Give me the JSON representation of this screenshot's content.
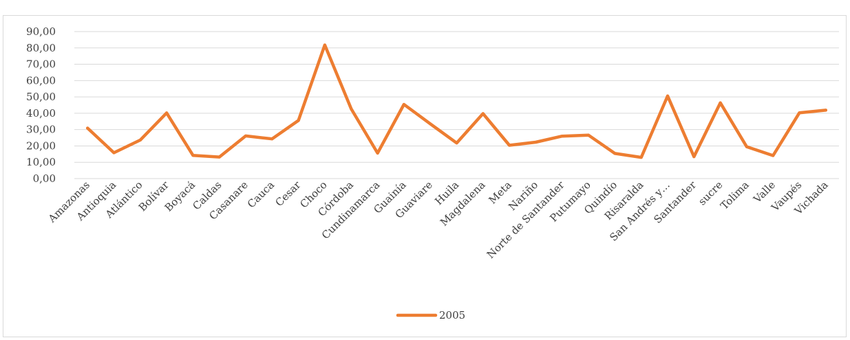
{
  "chart_data": {
    "type": "line",
    "title": "",
    "xlabel": "",
    "ylabel": "",
    "ylim": [
      0,
      90
    ],
    "y_ticks": [
      "0,00",
      "10,00",
      "20,00",
      "30,00",
      "40,00",
      "50,00",
      "60,00",
      "70,00",
      "80,00",
      "90,00"
    ],
    "grid": true,
    "legend_position": "bottom",
    "categories": [
      "Amazonas",
      "Antioquia",
      "Atlántico",
      "Bolívar",
      "Boyacá",
      "Caldas",
      "Casanare",
      "Cauca",
      "Cesar",
      "Choco",
      "Córdoba",
      "Cundinamarca",
      "Guainía",
      "Guaviare",
      "Huila",
      "Magdalena",
      "Meta",
      "Nariño",
      "Norte de Santander",
      "Putumayo",
      "Quindío",
      "Risaralda",
      "San Andrés y…",
      "Santander",
      "sucre",
      "Tolima",
      "Valle",
      "Vaupés",
      "Vichada"
    ],
    "series": [
      {
        "name": "2005",
        "color": "#ed7d31",
        "values": [
          30.9,
          15.8,
          23.6,
          40.2,
          14.2,
          13.2,
          26.1,
          24.3,
          35.6,
          81.8,
          42.7,
          15.6,
          45.4,
          33.5,
          21.8,
          39.8,
          20.4,
          22.3,
          26.0,
          26.6,
          15.4,
          13.0,
          50.6,
          13.4,
          46.4,
          19.5,
          14.1,
          40.3,
          41.9
        ]
      }
    ]
  }
}
